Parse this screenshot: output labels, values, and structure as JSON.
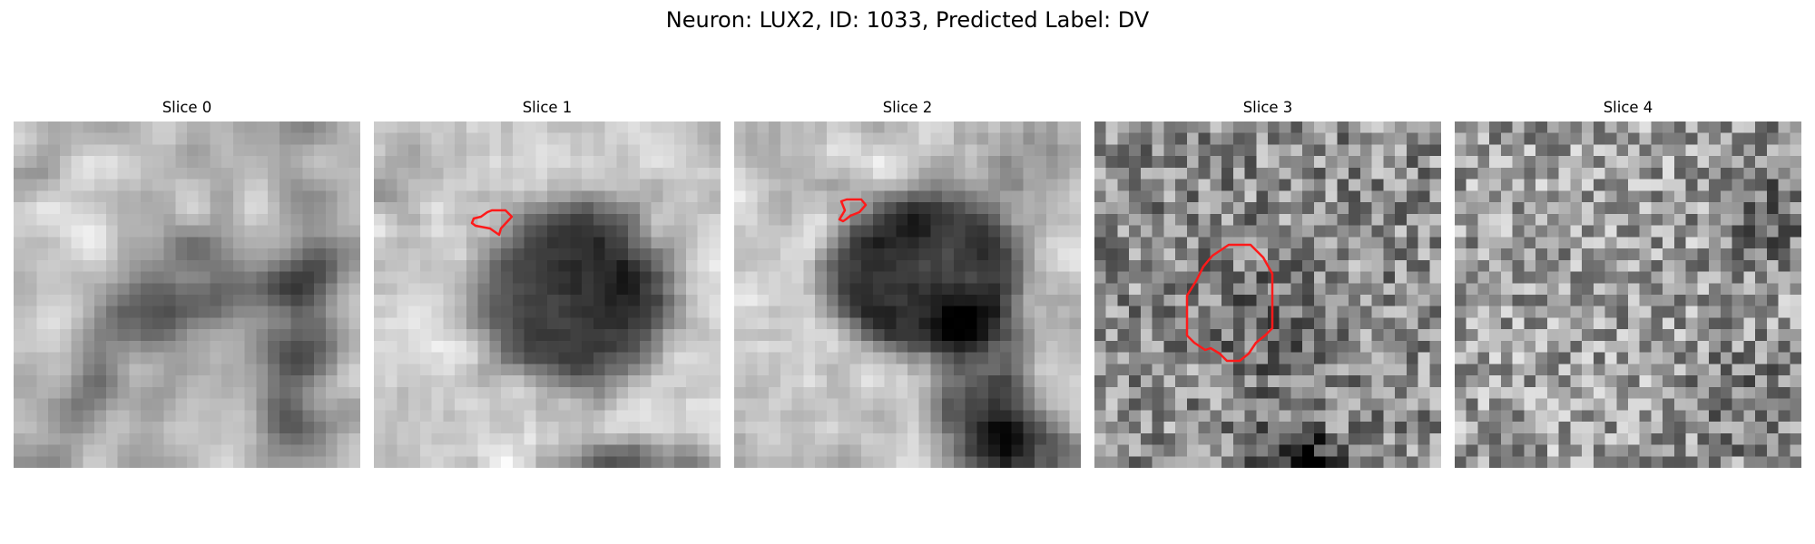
{
  "figure": {
    "title": "Neuron: LUX2, ID: 1033, Predicted Label: DV",
    "contour_color": "#ff1a1a",
    "colormap": "gray",
    "panels": [
      {
        "label": "Slice 0",
        "has_contour": false
      },
      {
        "label": "Slice 1",
        "has_contour": true
      },
      {
        "label": "Slice 2",
        "has_contour": true
      },
      {
        "label": "Slice 3",
        "has_contour": true
      },
      {
        "label": "Slice 4",
        "has_contour": false
      }
    ]
  }
}
